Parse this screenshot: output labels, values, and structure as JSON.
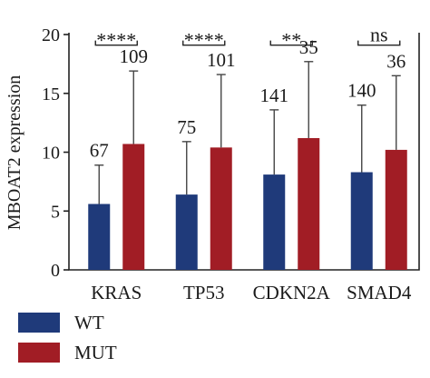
{
  "chart_data": {
    "type": "bar",
    "ylabel": "MBOAT2 expression",
    "xlabel": "",
    "ylim": [
      0,
      20
    ],
    "yticks": [
      "0",
      "5",
      "10",
      "15",
      "20"
    ],
    "categories": [
      "KRAS",
      "TP53",
      "CDKN2A",
      "SMAD4"
    ],
    "series": [
      {
        "name": "WT",
        "color": "#1f3a7a",
        "values": [
          5.6,
          6.4,
          8.1,
          8.3
        ],
        "error_upper": [
          8.9,
          10.9,
          13.6,
          14.0
        ],
        "n_labels": [
          "67",
          "75",
          "141",
          "140"
        ]
      },
      {
        "name": "MUT",
        "color": "#a11d25",
        "values": [
          10.7,
          10.4,
          11.2,
          10.2
        ],
        "error_upper": [
          16.9,
          16.6,
          17.7,
          16.5
        ],
        "n_labels": [
          "109",
          "101",
          "35",
          "36"
        ]
      }
    ],
    "significance": [
      "****",
      "****",
      "**",
      "ns"
    ],
    "legend": [
      {
        "label": "WT",
        "color": "#1f3a7a"
      },
      {
        "label": "MUT",
        "color": "#a11d25"
      }
    ],
    "legend_position": "bottom-left",
    "grid": false
  }
}
